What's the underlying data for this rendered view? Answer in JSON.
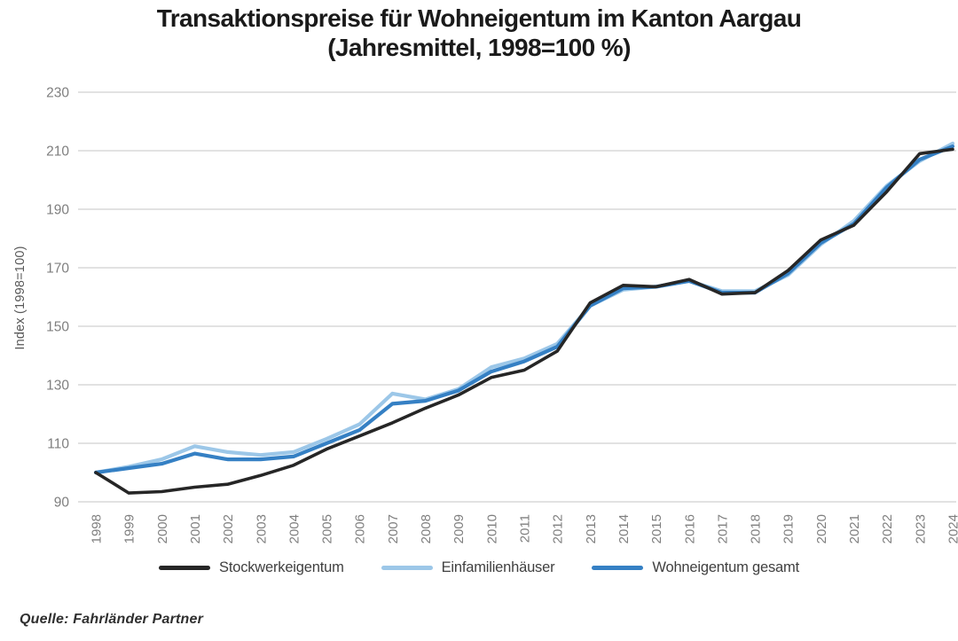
{
  "title": {
    "line1": "Transaktionspreise für Wohneigentum im Kanton Aargau",
    "line2": "(Jahresmittel, 1998=100 %)"
  },
  "source": "Quelle: Fahrländer Partner",
  "colors": {
    "stockwerkeigentum": "#262626",
    "einfamilienhaeuser": "#9CC7E8",
    "wohneigentum_gesamt": "#3580C4",
    "gridline": "#D9D9D9",
    "tick_text": "#7F7F7F",
    "title_text": "#1a1a1a"
  },
  "chart_data": {
    "type": "line",
    "title": "Transaktionspreise für Wohneigentum im Kanton Aargau (Jahresmittel, 1998=100 %)",
    "xlabel": "",
    "ylabel": "Index (1998=100)",
    "ylim": [
      90,
      230
    ],
    "yticks": [
      90,
      110,
      130,
      150,
      170,
      190,
      210,
      230
    ],
    "grid": true,
    "legend_position": "bottom",
    "categories": [
      "1998",
      "1999",
      "2000",
      "2001",
      "2002",
      "2003",
      "2004",
      "2005",
      "2006",
      "2007",
      "2008",
      "2009",
      "2010",
      "2011",
      "2012",
      "2013",
      "2014",
      "2015",
      "2016",
      "2017",
      "2018",
      "2019",
      "2020",
      "2021",
      "2022",
      "2023",
      "2024"
    ],
    "series": [
      {
        "name": "Stockwerkeigentum",
        "color": "#262626",
        "values": [
          100,
          93,
          93.5,
          95,
          96,
          99,
          102.5,
          108,
          112.5,
          117,
          122,
          126.5,
          132.5,
          135,
          141.5,
          158,
          164,
          163.5,
          166,
          161,
          161.5,
          169,
          179.5,
          184.5,
          196,
          209,
          210.5
        ]
      },
      {
        "name": "Einfamilienhäuser",
        "color": "#9CC7E8",
        "values": [
          100,
          102,
          104.5,
          109,
          107,
          106,
          107,
          111.5,
          116.5,
          127,
          125,
          128.5,
          136,
          139,
          144,
          157,
          162.5,
          163.5,
          165.5,
          162,
          162,
          167.5,
          178,
          186,
          198,
          206.5,
          212.5
        ]
      },
      {
        "name": "Wohneigentum gesamt",
        "color": "#3580C4",
        "values": [
          100,
          101.5,
          103,
          106.5,
          104.5,
          104.5,
          105.5,
          110,
          114.5,
          123.5,
          124.5,
          128,
          134.5,
          138,
          143,
          157,
          163,
          163.5,
          165.5,
          161.5,
          161.5,
          168,
          178.5,
          185,
          197.5,
          207,
          211.5
        ]
      }
    ]
  }
}
